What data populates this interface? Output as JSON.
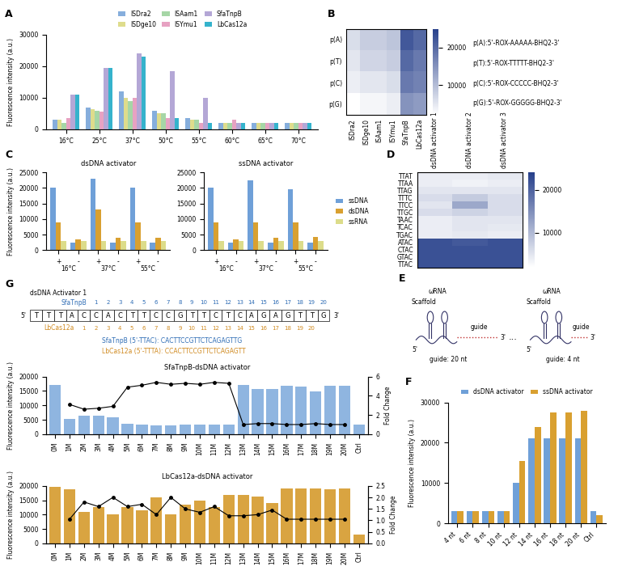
{
  "chart_data": [
    {
      "panel": "A",
      "type": "bar",
      "categories": [
        "16°C",
        "25°C",
        "37°C",
        "50°C",
        "55°C",
        "60°C",
        "65°C",
        "70°C"
      ],
      "ylabel": "Fluorescence intensity (a.u.)",
      "ylim": [
        0,
        30000
      ],
      "yticks": [
        0,
        10000,
        20000,
        30000
      ],
      "legend": "lower center",
      "series": [
        {
          "name": "ISDra2",
          "color": "#86aedc",
          "values": [
            3000,
            7000,
            12000,
            6000,
            3500,
            2000,
            2000,
            2000
          ]
        },
        {
          "name": "ISDge10",
          "color": "#dedc8c",
          "values": [
            3000,
            6500,
            10000,
            5000,
            3000,
            2000,
            2000,
            2000
          ]
        },
        {
          "name": "ISAam1",
          "color": "#a6d6a6",
          "values": [
            2000,
            6000,
            9000,
            5000,
            3000,
            2000,
            2000,
            2000
          ]
        },
        {
          "name": "ISYmu1",
          "color": "#e7a2c2",
          "values": [
            3500,
            5500,
            10000,
            3500,
            2000,
            3000,
            2000,
            2000
          ]
        },
        {
          "name": "SfaTnpB",
          "color": "#b4a7d6",
          "values": [
            11000,
            19500,
            24000,
            18500,
            10000,
            2000,
            2000,
            2000
          ]
        },
        {
          "name": "LbCas12a",
          "color": "#35b3cc",
          "values": [
            11000,
            19500,
            23000,
            3500,
            2000,
            2000,
            2000,
            2000
          ]
        }
      ]
    },
    {
      "panel": "B",
      "type": "heatmap",
      "color": "#27408b",
      "x": [
        "ISDra2",
        "ISDge10",
        "ISAam1",
        "ISYmu1",
        "SfaTnpB",
        "LbCas12a"
      ],
      "y": [
        "p(A)",
        "p(T)",
        "p(C)",
        "p(G)"
      ],
      "cells": [
        [
          6000,
          8000,
          8000,
          9000,
          22000,
          20000
        ],
        [
          5000,
          7000,
          7000,
          8000,
          20000,
          18000
        ],
        [
          4000,
          5000,
          5000,
          6000,
          18000,
          17000
        ],
        [
          2000,
          3000,
          3000,
          4000,
          15000,
          14000
        ]
      ],
      "colorbar": {
        "range": [
          2000,
          25000
        ],
        "ticks": [
          10000,
          20000
        ]
      },
      "annotations": [
        "p(A):5'-ROX-AAAAA-BHQ2-3'",
        "p(T):5'-ROX-TTTTT-BHQ2-3'",
        "p(C):5'-ROX-CCCCC-BHQ2-3'",
        "p(G):5'-ROX-GGGGG-BHQ2-3'"
      ]
    },
    {
      "panel": "C",
      "type": "bar",
      "title": "dsDNA activator",
      "categories": [
        "+",
        "-",
        "+",
        "-",
        "+",
        "-"
      ],
      "groups": [
        "16°C",
        "37°C",
        "55°C"
      ],
      "ylabel": "Fluorescence intensity (a.u.)",
      "ylim": [
        0,
        25000
      ],
      "yticks": [
        0,
        5000,
        10000,
        15000,
        20000,
        25000
      ],
      "series": [
        {
          "name": "ssDNA",
          "color": "#6fa0d8",
          "values": [
            20000,
            2500,
            23000,
            2500,
            20000,
            2500
          ]
        },
        {
          "name": "dsDNA",
          "color": "#d9a030",
          "values": [
            9000,
            3500,
            13000,
            4000,
            9000,
            4000
          ]
        },
        {
          "name": "ssRNA",
          "color": "#dcdc8a",
          "values": [
            3000,
            3000,
            3000,
            3000,
            3000,
            3000
          ]
        }
      ]
    },
    {
      "type": "bar",
      "title": "ssDNA activator",
      "categories": [
        "+",
        "-",
        "+",
        "-",
        "+",
        "-"
      ],
      "groups": [
        "16°C",
        "37°C",
        "55°C"
      ],
      "ylim": [
        0,
        25000
      ],
      "yticks": [
        0,
        5000,
        10000,
        15000,
        20000,
        25000
      ],
      "legend": "center left",
      "series": [
        {
          "name": "ssDNA",
          "color": "#6fa0d8",
          "values": [
            20000,
            2500,
            22500,
            2500,
            19500,
            2500
          ]
        },
        {
          "name": "dsDNA",
          "color": "#d9a030",
          "values": [
            8800,
            3500,
            9000,
            4000,
            9000,
            4200
          ]
        },
        {
          "name": "ssRNA",
          "color": "#dcdc8a",
          "values": [
            3000,
            3000,
            3000,
            3000,
            3000,
            3000
          ]
        }
      ]
    },
    {
      "panel": "D",
      "type": "heatmap",
      "color": "#27408b",
      "x": [
        "dsDNA activator 1",
        "dsDNA activator 2",
        "dsDNA activator 3"
      ],
      "y": [
        "TTAT",
        "TTAA",
        "TTAG",
        "TTTC",
        "TTCC",
        "TTGC",
        "TAAC",
        "TCAC",
        "TGAC",
        "ATAC",
        "CTAC",
        "GTAC",
        "TTAC"
      ],
      "cells": [
        [
          4000,
          4000,
          4500
        ],
        [
          4000,
          3500,
          4000
        ],
        [
          5000,
          5000,
          5000
        ],
        [
          6000,
          8000,
          6000
        ],
        [
          5000,
          12000,
          6000
        ],
        [
          6000,
          7000,
          6000
        ],
        [
          4000,
          5000,
          5000
        ],
        [
          4000,
          5000,
          4500
        ],
        [
          4000,
          4500,
          4000
        ],
        [
          22000,
          21000,
          22000
        ],
        [
          22000,
          22000,
          22000
        ],
        [
          22000,
          22000,
          22000
        ],
        [
          22000,
          22000,
          22000
        ]
      ],
      "colorbar": {
        "range": [
          2000,
          24000
        ],
        "ticks": [
          10000,
          20000
        ]
      }
    },
    {
      "panel": "F",
      "type": "bar",
      "categories": [
        "4 nt",
        "6 nt",
        "8 nt",
        "10 nt",
        "12 nt",
        "14 nt",
        "16 nt",
        "18 nt",
        "20 nt",
        "Ctrl"
      ],
      "ylabel": "Fluorescence intensity (a.u.)",
      "ylim": [
        0,
        30000
      ],
      "yticks": [
        0,
        10000,
        20000,
        30000
      ],
      "legend": "lower center",
      "series": [
        {
          "name": "dsDNA activator",
          "color": "#6fa0d8",
          "values": [
            3000,
            3000,
            3000,
            3000,
            10000,
            21000,
            21000,
            21000,
            21000,
            3000
          ]
        },
        {
          "name": "ssDNA activator",
          "color": "#d9a030",
          "values": [
            3000,
            3000,
            3000,
            3000,
            15500,
            24000,
            27500,
            27500,
            28000,
            2000
          ]
        }
      ]
    },
    {
      "type": "bar",
      "title": "SfaTnpB-dsDNA activator",
      "categories": [
        "0M",
        "1M",
        "2M",
        "3M",
        "4M",
        "5M",
        "6M",
        "7M",
        "8M",
        "9M",
        "10M",
        "11M",
        "12M",
        "13M",
        "14M",
        "15M",
        "16M",
        "17M",
        "18M",
        "19M",
        "20M",
        "Ctrl"
      ],
      "ylabel": "Fluorescence intensity (a.u.)",
      "y2label": "Fold Change",
      "ylim": [
        0,
        20000
      ],
      "yticks": [
        0,
        5000,
        10000,
        15000,
        20000
      ],
      "y2lim": [
        0,
        6
      ],
      "y2ticks": [
        0,
        2,
        4,
        6
      ],
      "series": [
        {
          "type": "bar",
          "color": "#8fb5e0",
          "values": [
            17000,
            5300,
            6500,
            6300,
            5900,
            3500,
            3300,
            3000,
            3100,
            3200,
            3200,
            3200,
            3200,
            17000,
            15800,
            15800,
            16700,
            16500,
            14800,
            16800,
            16800,
            3300
          ]
        },
        {
          "type": "line",
          "axis": "y2",
          "color": "#000000",
          "marker": "circle",
          "values": [
            null,
            3.1,
            2.6,
            2.7,
            2.9,
            4.9,
            5.1,
            5.4,
            5.2,
            5.3,
            5.2,
            5.4,
            5.3,
            1.0,
            1.1,
            1.1,
            1.0,
            1.0,
            1.1,
            1.0,
            1.0,
            null
          ]
        }
      ]
    },
    {
      "type": "bar",
      "title": "LbCas12a-dsDNA activator",
      "categories": [
        "0M",
        "1M",
        "2M",
        "3M",
        "4M",
        "5M",
        "6M",
        "7M",
        "8M",
        "9M",
        "10M",
        "11M",
        "12M",
        "13M",
        "14M",
        "15M",
        "16M",
        "17M",
        "18M",
        "19M",
        "20M",
        "Ctrl"
      ],
      "ylabel": "Fluorescence intensity (a.u.)",
      "y2label": "Fold Change",
      "ylim": [
        0,
        20000
      ],
      "yticks": [
        0,
        5000,
        10000,
        15000,
        20000
      ],
      "y2lim": [
        0,
        2.5
      ],
      "y2ticks": [
        {
          "value": 0,
          "label": "0.0"
        },
        0.5,
        {
          "value": 1,
          "label": "1.0"
        },
        1.5,
        {
          "value": 2,
          "label": "2.0"
        },
        2.5
      ],
      "series": [
        {
          "type": "bar",
          "color": "#d9a441",
          "values": [
            19800,
            18800,
            11000,
            12500,
            10000,
            12500,
            11500,
            16000,
            10000,
            13500,
            15000,
            12500,
            16800,
            16800,
            16200,
            14000,
            19000,
            19000,
            19000,
            18800,
            19000,
            3000
          ]
        },
        {
          "type": "line",
          "axis": "y2",
          "color": "#000000",
          "marker": "circle",
          "values": [
            null,
            1.05,
            1.8,
            1.6,
            2.0,
            1.6,
            1.7,
            1.25,
            2.0,
            1.5,
            1.35,
            1.6,
            1.2,
            1.2,
            1.25,
            1.45,
            1.05,
            1.05,
            1.05,
            1.05,
            1.05,
            null
          ]
        }
      ]
    }
  ],
  "diagram_E": {
    "panel": "E",
    "ellipsis": "...",
    "left": {
      "title": "ωRNA",
      "scaffold": "Scaffold",
      "guide": "guide",
      "five": "5'",
      "three": "3'",
      "caption": "guide: 20 nt"
    },
    "right": {
      "title": "ωRNA",
      "scaffold": "Scaffold",
      "guide": "guide",
      "five": "5'",
      "three": "3'",
      "caption": "guide: 4 nt"
    }
  },
  "sequence_G": {
    "panel": "G",
    "title": "dsDNA Activator 1",
    "five": "5'",
    "three": "3'",
    "sequence": "TTTACCACTTCCGTTCTCAGAGTTG",
    "tracks": [
      {
        "name": "SfaTnpB",
        "color": "#2f6db5",
        "numbers": [
          1,
          2,
          3,
          4,
          5,
          6,
          7,
          8,
          9,
          10,
          11,
          12,
          13,
          14,
          15,
          16,
          17,
          18,
          19,
          20
        ],
        "caption": "SfaTnpB (5'-TTAC): CACTTCCGTTCTCAGAGTTG"
      },
      {
        "name": "LbCas12a",
        "color": "#d08a20",
        "numbers": [
          1,
          2,
          3,
          4,
          5,
          6,
          7,
          8,
          9,
          10,
          11,
          12,
          13,
          14,
          15,
          16,
          17,
          18,
          19,
          20
        ],
        "caption": "LbCas12a (5'-TTTA): CCACTTCCGTTCTCAGAGTT"
      }
    ]
  }
}
